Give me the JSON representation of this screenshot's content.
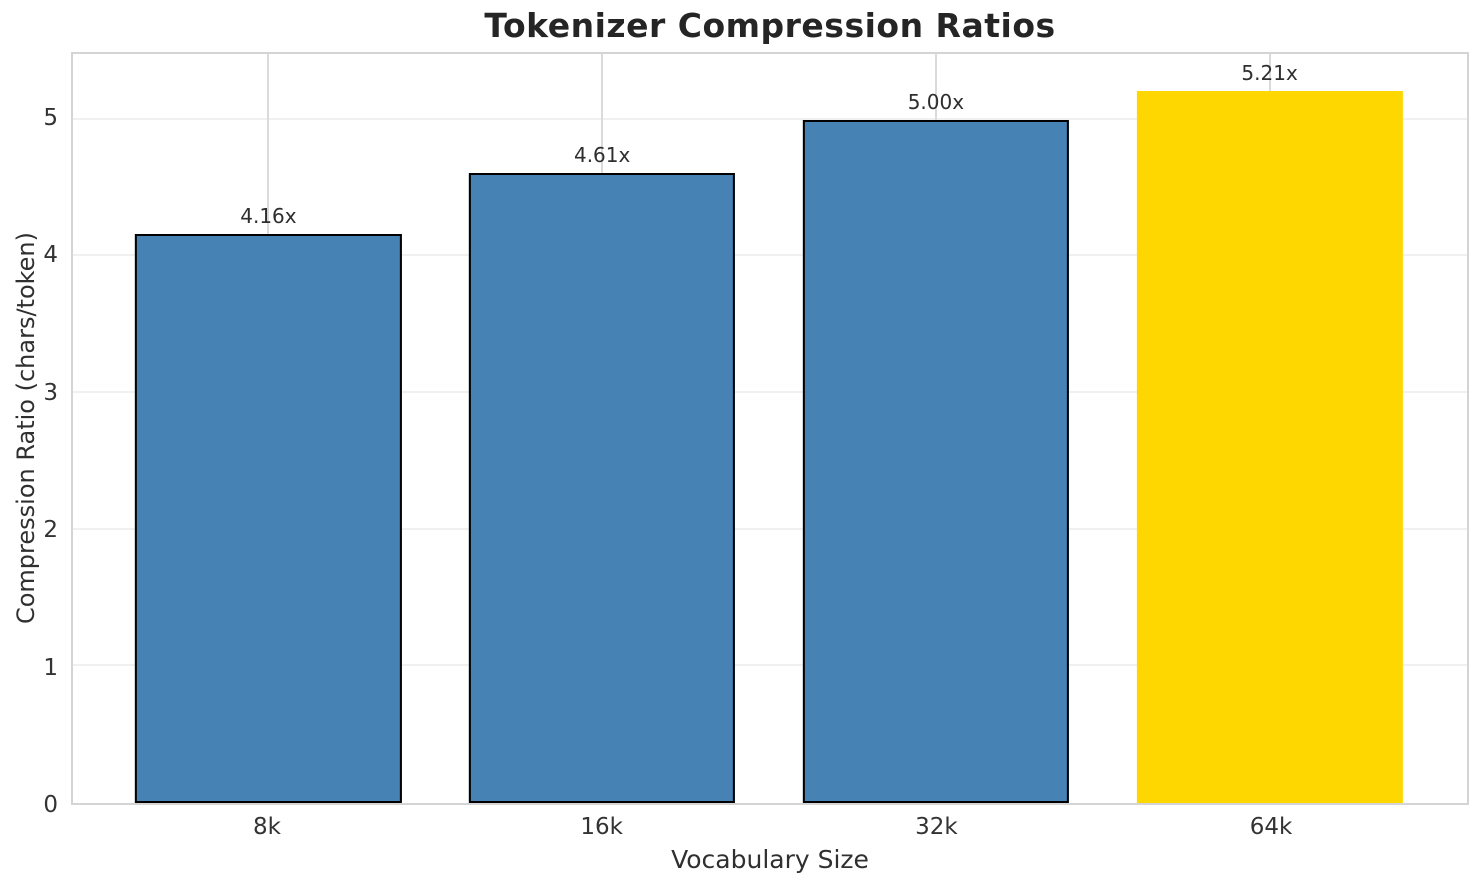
{
  "chart_data": {
    "type": "bar",
    "title": "Tokenizer Compression Ratios",
    "xlabel": "Vocabulary Size",
    "ylabel": "Compression Ratio (chars/token)",
    "categories": [
      "8k",
      "16k",
      "32k",
      "64k"
    ],
    "values": [
      4.16,
      4.61,
      5.0,
      5.21
    ],
    "bar_labels": [
      "4.16x",
      "4.61x",
      "5.00x",
      "5.21x"
    ],
    "bar_colors": [
      "#4682B4",
      "#4682B4",
      "#4682B4",
      "#FFD700"
    ],
    "bar_edge_colors": [
      "#000000",
      "#000000",
      "#000000",
      "none"
    ],
    "highlighted_category": "64k",
    "yticks": [
      0,
      1,
      2,
      3,
      4,
      5
    ],
    "ylim": [
      0,
      5.48
    ],
    "grid": true,
    "legend_position": "none"
  },
  "colors": {
    "bar_default": "#4682B4",
    "bar_highlight": "#FFD700",
    "bar_edge": "#000000",
    "grid_horizontal": "#f0f0f0",
    "grid_vertical": "#dadada",
    "spine": "#d4d4d4",
    "text": "#303030",
    "title": "#252525"
  }
}
